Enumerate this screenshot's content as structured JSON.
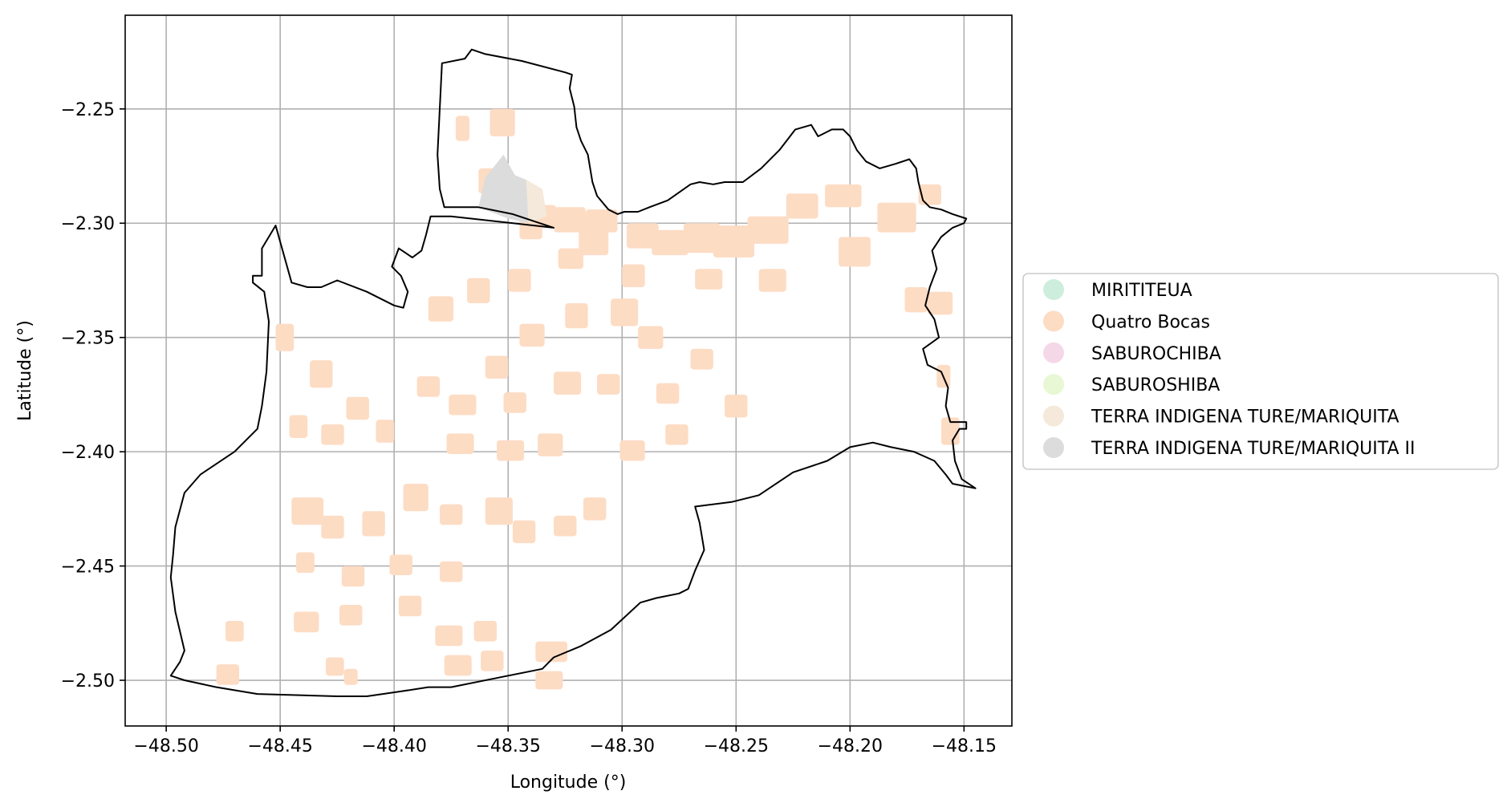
{
  "figure": {
    "xlabel": "Longitude (°)",
    "ylabel": "Latitude (°)"
  },
  "chart_data": {
    "type": "map",
    "xlim": [
      -48.518,
      -48.129
    ],
    "ylim": [
      -2.52,
      -2.209
    ],
    "grid": true,
    "x_ticks": [
      {
        "value": -48.5,
        "label": "−48.50"
      },
      {
        "value": -48.45,
        "label": "−48.45"
      },
      {
        "value": -48.4,
        "label": "−48.40"
      },
      {
        "value": -48.35,
        "label": "−48.35"
      },
      {
        "value": -48.3,
        "label": "−48.30"
      },
      {
        "value": -48.25,
        "label": "−48.25"
      },
      {
        "value": -48.2,
        "label": "−48.20"
      },
      {
        "value": -48.15,
        "label": "−48.15"
      }
    ],
    "y_ticks": [
      {
        "value": -2.25,
        "label": "−2.25"
      },
      {
        "value": -2.3,
        "label": "−2.30"
      },
      {
        "value": -2.35,
        "label": "−2.35"
      },
      {
        "value": -2.4,
        "label": "−2.40"
      },
      {
        "value": -2.45,
        "label": "−2.45"
      },
      {
        "value": -2.5,
        "label": "−2.50"
      }
    ],
    "legend": {
      "placement": "center-right outside",
      "entries": [
        {
          "name": "MIRITITEUA",
          "color": "#cdeedd"
        },
        {
          "name": "Quatro Bocas",
          "color": "#fddcc4"
        },
        {
          "name": "SABUROCHIBA",
          "color": "#f5d8e8"
        },
        {
          "name": "SABUROSHIBA",
          "color": "#e8f7d4"
        },
        {
          "name": "TERRA INDIGENA TURE/MARIQUITA",
          "color": "#f4e9da"
        },
        {
          "name": "TERRA INDIGENA TURE/MARIQUITA II",
          "color": "#dcdcdc"
        }
      ]
    },
    "boundary": [
      [
        -48.498,
        -2.498
      ],
      [
        -48.492,
        -2.5
      ],
      [
        -48.478,
        -2.503
      ],
      [
        -48.46,
        -2.506
      ],
      [
        -48.425,
        -2.507
      ],
      [
        -48.412,
        -2.507
      ],
      [
        -48.398,
        -2.505
      ],
      [
        -48.385,
        -2.503
      ],
      [
        -48.375,
        -2.503
      ],
      [
        -48.355,
        -2.499
      ],
      [
        -48.335,
        -2.495
      ],
      [
        -48.33,
        -2.49
      ],
      [
        -48.318,
        -2.485
      ],
      [
        -48.305,
        -2.478
      ],
      [
        -48.292,
        -2.466
      ],
      [
        -48.285,
        -2.464
      ],
      [
        -48.275,
        -2.462
      ],
      [
        -48.271,
        -2.46
      ],
      [
        -48.268,
        -2.452
      ],
      [
        -48.264,
        -2.443
      ],
      [
        -48.266,
        -2.431
      ],
      [
        -48.268,
        -2.424
      ],
      [
        -48.252,
        -2.422
      ],
      [
        -48.24,
        -2.419
      ],
      [
        -48.225,
        -2.409
      ],
      [
        -48.21,
        -2.404
      ],
      [
        -48.2,
        -2.398
      ],
      [
        -48.19,
        -2.396
      ],
      [
        -48.182,
        -2.398
      ],
      [
        -48.172,
        -2.4
      ],
      [
        -48.163,
        -2.404
      ],
      [
        -48.158,
        -2.41
      ],
      [
        -48.155,
        -2.414
      ],
      [
        -48.15,
        -2.415
      ],
      [
        -48.145,
        -2.416
      ],
      [
        -48.151,
        -2.412
      ],
      [
        -48.154,
        -2.404
      ],
      [
        -48.155,
        -2.395
      ],
      [
        -48.152,
        -2.39
      ],
      [
        -48.149,
        -2.39
      ],
      [
        -48.149,
        -2.387
      ],
      [
        -48.156,
        -2.387
      ],
      [
        -48.158,
        -2.38
      ],
      [
        -48.157,
        -2.372
      ],
      [
        -48.16,
        -2.365
      ],
      [
        -48.166,
        -2.362
      ],
      [
        -48.168,
        -2.355
      ],
      [
        -48.161,
        -2.35
      ],
      [
        -48.163,
        -2.342
      ],
      [
        -48.167,
        -2.336
      ],
      [
        -48.165,
        -2.328
      ],
      [
        -48.162,
        -2.32
      ],
      [
        -48.164,
        -2.312
      ],
      [
        -48.16,
        -2.306
      ],
      [
        -48.155,
        -2.302
      ],
      [
        -48.15,
        -2.3
      ],
      [
        -48.149,
        -2.298
      ],
      [
        -48.155,
        -2.296
      ],
      [
        -48.16,
        -2.294
      ],
      [
        -48.165,
        -2.293
      ],
      [
        -48.168,
        -2.29
      ],
      [
        -48.17,
        -2.282
      ],
      [
        -48.171,
        -2.276
      ],
      [
        -48.174,
        -2.272
      ],
      [
        -48.18,
        -2.274
      ],
      [
        -48.187,
        -2.276
      ],
      [
        -48.193,
        -2.273
      ],
      [
        -48.197,
        -2.268
      ],
      [
        -48.2,
        -2.262
      ],
      [
        -48.203,
        -2.259
      ],
      [
        -48.208,
        -2.259
      ],
      [
        -48.214,
        -2.262
      ],
      [
        -48.217,
        -2.257
      ],
      [
        -48.224,
        -2.259
      ],
      [
        -48.231,
        -2.268
      ],
      [
        -48.239,
        -2.276
      ],
      [
        -48.247,
        -2.282
      ],
      [
        -48.255,
        -2.282
      ],
      [
        -48.26,
        -2.283
      ],
      [
        -48.266,
        -2.282
      ],
      [
        -48.27,
        -2.283
      ],
      [
        -48.28,
        -2.29
      ],
      [
        -48.288,
        -2.293
      ],
      [
        -48.293,
        -2.295
      ],
      [
        -48.299,
        -2.295
      ],
      [
        -48.302,
        -2.296
      ],
      [
        -48.306,
        -2.294
      ],
      [
        -48.311,
        -2.288
      ],
      [
        -48.313,
        -2.282
      ],
      [
        -48.315,
        -2.27
      ],
      [
        -48.318,
        -2.264
      ],
      [
        -48.32,
        -2.258
      ],
      [
        -48.321,
        -2.249
      ],
      [
        -48.323,
        -2.241
      ],
      [
        -48.322,
        -2.235
      ],
      [
        -48.325,
        -2.234
      ],
      [
        -48.344,
        -2.229
      ],
      [
        -48.36,
        -2.226
      ],
      [
        -48.366,
        -2.224
      ],
      [
        -48.369,
        -2.228
      ],
      [
        -48.379,
        -2.23
      ],
      [
        -48.381,
        -2.27
      ],
      [
        -48.38,
        -2.285
      ],
      [
        -48.378,
        -2.293
      ],
      [
        -48.363,
        -2.293
      ],
      [
        -48.348,
        -2.296
      ],
      [
        -48.33,
        -2.302
      ],
      [
        -48.375,
        -2.297
      ],
      [
        -48.384,
        -2.297
      ],
      [
        -48.386,
        -2.305
      ],
      [
        -48.388,
        -2.312
      ],
      [
        -48.392,
        -2.315
      ],
      [
        -48.398,
        -2.311
      ],
      [
        -48.401,
        -2.319
      ],
      [
        -48.397,
        -2.323
      ],
      [
        -48.394,
        -2.33
      ],
      [
        -48.396,
        -2.337
      ],
      [
        -48.4,
        -2.336
      ],
      [
        -48.412,
        -2.33
      ],
      [
        -48.425,
        -2.325
      ],
      [
        -48.432,
        -2.328
      ],
      [
        -48.438,
        -2.328
      ],
      [
        -48.445,
        -2.326
      ],
      [
        -48.452,
        -2.301
      ],
      [
        -48.458,
        -2.311
      ],
      [
        -48.458,
        -2.323
      ],
      [
        -48.462,
        -2.323
      ],
      [
        -48.462,
        -2.326
      ],
      [
        -48.457,
        -2.33
      ],
      [
        -48.455,
        -2.343
      ],
      [
        -48.456,
        -2.365
      ],
      [
        -48.458,
        -2.38
      ],
      [
        -48.46,
        -2.39
      ],
      [
        -48.47,
        -2.4
      ],
      [
        -48.485,
        -2.41
      ],
      [
        -48.492,
        -2.418
      ],
      [
        -48.496,
        -2.433
      ],
      [
        -48.497,
        -2.445
      ],
      [
        -48.498,
        -2.455
      ],
      [
        -48.496,
        -2.47
      ],
      [
        -48.492,
        -2.487
      ],
      [
        -48.494,
        -2.492
      ],
      [
        -48.498,
        -2.498
      ]
    ],
    "regions": [
      {
        "name": "TERRA INDIGENA TURE/MARIQUITA II",
        "polygon": [
          [
            -48.363,
            -2.293
          ],
          [
            -48.36,
            -2.28
          ],
          [
            -48.352,
            -2.27
          ],
          [
            -48.347,
            -2.279
          ],
          [
            -48.342,
            -2.281
          ],
          [
            -48.341,
            -2.3
          ],
          [
            -48.35,
            -2.298
          ]
        ]
      },
      {
        "name": "TERRA INDIGENA TURE/MARIQUITA",
        "polygon": [
          [
            -48.342,
            -2.281
          ],
          [
            -48.335,
            -2.285
          ],
          [
            -48.333,
            -2.297
          ],
          [
            -48.341,
            -2.3
          ]
        ]
      }
    ],
    "patches_region": "Quatro Bocas",
    "patches": [
      [
        -48.373,
        -2.253,
        0.006,
        0.011
      ],
      [
        -48.358,
        -2.25,
        0.011,
        0.012
      ],
      [
        -48.363,
        -2.276,
        0.008,
        0.011
      ],
      [
        -48.345,
        -2.296,
        0.01,
        0.011
      ],
      [
        -48.339,
        -2.292,
        0.01,
        0.01
      ],
      [
        -48.33,
        -2.293,
        0.014,
        0.011
      ],
      [
        -48.319,
        -2.302,
        0.013,
        0.012
      ],
      [
        -48.316,
        -2.294,
        0.014,
        0.01
      ],
      [
        -48.298,
        -2.3,
        0.014,
        0.011
      ],
      [
        -48.287,
        -2.303,
        0.016,
        0.011
      ],
      [
        -48.273,
        -2.3,
        0.016,
        0.013
      ],
      [
        -48.26,
        -2.301,
        0.018,
        0.014
      ],
      [
        -48.245,
        -2.297,
        0.018,
        0.012
      ],
      [
        -48.228,
        -2.287,
        0.014,
        0.011
      ],
      [
        -48.211,
        -2.283,
        0.016,
        0.01
      ],
      [
        -48.188,
        -2.291,
        0.017,
        0.013
      ],
      [
        -48.17,
        -2.283,
        0.01,
        0.009
      ],
      [
        -48.24,
        -2.32,
        0.012,
        0.01
      ],
      [
        -48.268,
        -2.32,
        0.012,
        0.009
      ],
      [
        -48.3,
        -2.318,
        0.01,
        0.01
      ],
      [
        -48.328,
        -2.311,
        0.011,
        0.009
      ],
      [
        -48.205,
        -2.306,
        0.014,
        0.013
      ],
      [
        -48.166,
        -2.33,
        0.011,
        0.01
      ],
      [
        -48.176,
        -2.328,
        0.01,
        0.011
      ],
      [
        -48.162,
        -2.362,
        0.006,
        0.01
      ],
      [
        -48.16,
        -2.385,
        0.008,
        0.012
      ],
      [
        -48.385,
        -2.332,
        0.011,
        0.011
      ],
      [
        -48.368,
        -2.324,
        0.01,
        0.011
      ],
      [
        -48.35,
        -2.32,
        0.01,
        0.01
      ],
      [
        -48.345,
        -2.344,
        0.011,
        0.01
      ],
      [
        -48.325,
        -2.335,
        0.01,
        0.011
      ],
      [
        -48.305,
        -2.333,
        0.012,
        0.012
      ],
      [
        -48.293,
        -2.345,
        0.011,
        0.01
      ],
      [
        -48.311,
        -2.366,
        0.01,
        0.009
      ],
      [
        -48.33,
        -2.365,
        0.012,
        0.01
      ],
      [
        -48.36,
        -2.358,
        0.01,
        0.01
      ],
      [
        -48.376,
        -2.375,
        0.012,
        0.009
      ],
      [
        -48.39,
        -2.367,
        0.01,
        0.009
      ],
      [
        -48.352,
        -2.374,
        0.01,
        0.009
      ],
      [
        -48.27,
        -2.355,
        0.01,
        0.009
      ],
      [
        -48.255,
        -2.375,
        0.01,
        0.01
      ],
      [
        -48.285,
        -2.37,
        0.01,
        0.009
      ],
      [
        -48.452,
        -2.344,
        0.008,
        0.012
      ],
      [
        -48.437,
        -2.36,
        0.01,
        0.012
      ],
      [
        -48.421,
        -2.376,
        0.01,
        0.01
      ],
      [
        -48.408,
        -2.386,
        0.008,
        0.01
      ],
      [
        -48.446,
        -2.384,
        0.008,
        0.01
      ],
      [
        -48.432,
        -2.388,
        0.01,
        0.009
      ],
      [
        -48.445,
        -2.42,
        0.014,
        0.012
      ],
      [
        -48.432,
        -2.428,
        0.01,
        0.01
      ],
      [
        -48.414,
        -2.426,
        0.01,
        0.011
      ],
      [
        -48.396,
        -2.414,
        0.011,
        0.012
      ],
      [
        -48.38,
        -2.423,
        0.01,
        0.009
      ],
      [
        -48.36,
        -2.42,
        0.012,
        0.012
      ],
      [
        -48.348,
        -2.43,
        0.01,
        0.01
      ],
      [
        -48.33,
        -2.428,
        0.01,
        0.009
      ],
      [
        -48.317,
        -2.42,
        0.01,
        0.01
      ],
      [
        -48.377,
        -2.392,
        0.012,
        0.009
      ],
      [
        -48.355,
        -2.395,
        0.012,
        0.009
      ],
      [
        -48.337,
        -2.392,
        0.011,
        0.01
      ],
      [
        -48.301,
        -2.395,
        0.011,
        0.009
      ],
      [
        -48.281,
        -2.388,
        0.01,
        0.009
      ],
      [
        -48.402,
        -2.445,
        0.01,
        0.009
      ],
      [
        -48.423,
        -2.45,
        0.01,
        0.009
      ],
      [
        -48.443,
        -2.444,
        0.008,
        0.009
      ],
      [
        -48.38,
        -2.448,
        0.01,
        0.009
      ],
      [
        -48.444,
        -2.47,
        0.011,
        0.009
      ],
      [
        -48.424,
        -2.467,
        0.01,
        0.009
      ],
      [
        -48.398,
        -2.463,
        0.01,
        0.009
      ],
      [
        -48.382,
        -2.476,
        0.012,
        0.009
      ],
      [
        -48.365,
        -2.474,
        0.01,
        0.009
      ],
      [
        -48.362,
        -2.487,
        0.01,
        0.009
      ],
      [
        -48.338,
        -2.483,
        0.014,
        0.009
      ],
      [
        -48.378,
        -2.489,
        0.012,
        0.009
      ],
      [
        -48.338,
        -2.496,
        0.012,
        0.008
      ],
      [
        -48.478,
        -2.493,
        0.01,
        0.009
      ],
      [
        -48.474,
        -2.474,
        0.008,
        0.009
      ],
      [
        -48.43,
        -2.49,
        0.008,
        0.008
      ],
      [
        -48.422,
        -2.495,
        0.006,
        0.007
      ]
    ]
  }
}
